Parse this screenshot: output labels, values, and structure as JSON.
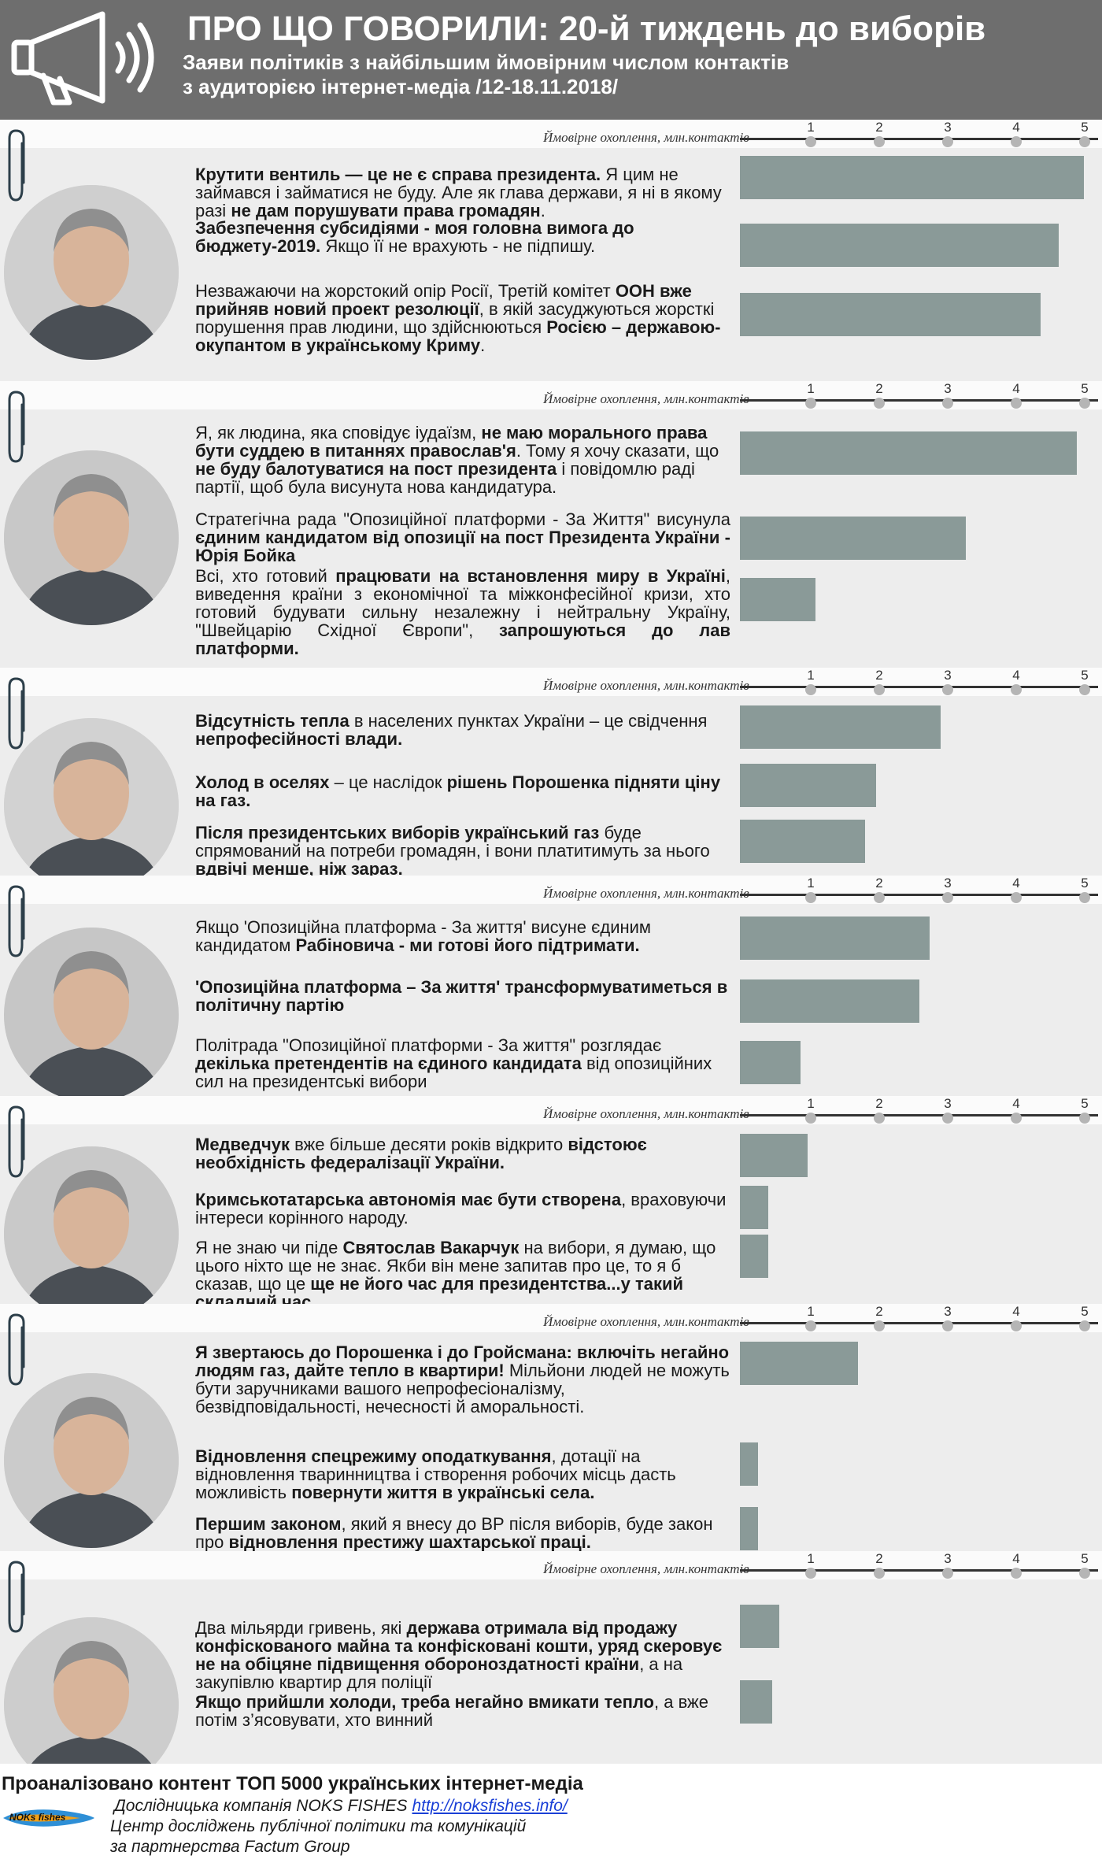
{
  "header": {
    "title": "ПРО ЩО ГОВОРИЛИ: 20-й тиждень до виборів",
    "subtitle_line1": "Заяви політиків з найбільшим ймовірним числом контактів",
    "subtitle_line2": "з аудиторією інтернет-медіа /12-18.11.2018/",
    "icon": "megaphone-icon"
  },
  "axis": {
    "label": "Ймовірне охоплення, млн.контактів",
    "ticks": [
      "1",
      "2",
      "3",
      "4",
      "5"
    ],
    "range": [
      0,
      5
    ]
  },
  "colors": {
    "header_bg": "#6e6e6e",
    "panel_bg": "#ededed",
    "bar": "#8a9a98",
    "link": "#1a3fd6"
  },
  "chart_data": {
    "type": "bar",
    "orientation": "horizontal",
    "xlabel": "Ймовірне охоплення, млн.контактів",
    "xlim": [
      0,
      5
    ],
    "ticks": [
      1,
      2,
      3,
      4,
      5
    ],
    "grid": false,
    "categories": [
      "Крутити вентиль — це не є справа президента",
      "Забезпечення субсидіями - моя головна вимога",
      "ООН вже прийняв новий проект резолюції",
      "не маю морального права бути суддею",
      "єдиним кандидатом від опозиції - Юрія Бойка",
      "працювати на встановлення миру в Україні",
      "Відсутність тепла",
      "Холод в оселях",
      "Після президентських виборів український газ",
      "висуне єдиним кандидатом Рабіновича",
      "трансформуватиметься в політичну партію",
      "декілька претендентів на єдиного кандидата",
      "Медведчук відстоює необхідність федералізації",
      "Кримськотатарська автономія",
      "Святослав Вакарчук",
      "Я звертаюсь до Порошенка і до Гройсмана",
      "Відновлення спецрежиму оподаткування",
      "Першим законом",
      "Два мільярди гривень",
      "Якщо прийшли холоди, треба негайно вмикати тепло"
    ],
    "values": [
      4.8,
      4.45,
      4.2,
      4.7,
      3.15,
      1.05,
      2.8,
      1.9,
      1.75,
      2.65,
      2.5,
      0.85,
      0.95,
      0.4,
      0.4,
      1.65,
      0.25,
      0.25,
      0.55,
      0.45
    ]
  },
  "politicians": [
    {
      "statements": [
        {
          "parts": [
            {
              "t": "Крутити вентиль — це не є справа президента.",
              "b": true
            },
            {
              "t": " Я цим не займався і займатися не буду. Але як глава держави, я ні в якому разі ",
              "b": false
            },
            {
              "t": "не дам порушувати права громадян",
              "b": true
            },
            {
              "t": ".",
              "b": false
            }
          ]
        },
        {
          "parts": [
            {
              "t": "Забезпечення субсидіями - моя головна вимога до бюджету-2019.",
              "b": true
            },
            {
              "t": " Якщо її не врахують - не підпишу.",
              "b": false
            }
          ]
        },
        {
          "parts": [
            {
              "t": "Незважаючи на жорстокий опір Росії, Третій комітет ",
              "b": false
            },
            {
              "t": "ООН вже прийняв новий проект резолюції",
              "b": true
            },
            {
              "t": ", в якій засуджуються жорсткі порушення прав людини, що здійснюються ",
              "b": false
            },
            {
              "t": "Росією – державою-окупантом в українському Криму",
              "b": true
            },
            {
              "t": ".",
              "b": false
            }
          ]
        }
      ]
    },
    {
      "statements": [
        {
          "parts": [
            {
              "t": "Я, як людина, яка сповідує іудаїзм, ",
              "b": false
            },
            {
              "t": "не маю морального права бути суддею в питаннях православ'я",
              "b": true
            },
            {
              "t": ". Тому я хочу сказати, що ",
              "b": false
            },
            {
              "t": "не буду балотуватися на пост президента",
              "b": true
            },
            {
              "t": " і повідомлю раді партії, щоб була висунута нова кандидатура.",
              "b": false
            }
          ]
        },
        {
          "parts": [
            {
              "t": "Стратегічна рада \"Опозиційної платформи - За Життя\" висунула ",
              "b": false
            },
            {
              "t": "єдиним кандидатом від опозиції на пост Президента України - Юрія Бойка",
              "b": true
            }
          ]
        },
        {
          "parts": [
            {
              "t": "Всі, хто готовий ",
              "b": false
            },
            {
              "t": "працювати на встановлення миру в Україні",
              "b": true
            },
            {
              "t": ", виведення країни з економічної та міжконфесійної кризи, хто готовий будувати сильну незалежну і нейтральну Україну, \"Швейцарію Східної Європи\", ",
              "b": false
            },
            {
              "t": "запрошуються до лав платформи.",
              "b": true
            }
          ]
        }
      ]
    },
    {
      "statements": [
        {
          "parts": [
            {
              "t": "Відсутність тепла",
              "b": true
            },
            {
              "t": " в населених пунктах України – це свідчення ",
              "b": false
            },
            {
              "t": "непрофесійності влади.",
              "b": true
            }
          ]
        },
        {
          "parts": [
            {
              "t": "Холод в оселях",
              "b": true
            },
            {
              "t": " – це наслідок ",
              "b": false
            },
            {
              "t": "рішень Порошенка підняти ціну на газ.",
              "b": true
            }
          ]
        },
        {
          "parts": [
            {
              "t": "Після президентських виборів український газ",
              "b": true
            },
            {
              "t": " буде спрямований на потреби громадян, і вони платитимуть за нього ",
              "b": false
            },
            {
              "t": "вдвічі менше, ніж зараз.",
              "b": true
            }
          ]
        }
      ]
    },
    {
      "statements": [
        {
          "parts": [
            {
              "t": "Якщо 'Опозиційна платформа - За життя' висуне єдиним кандидатом ",
              "b": false
            },
            {
              "t": "Рабіновича - ми готові його підтримати.",
              "b": true
            }
          ]
        },
        {
          "parts": [
            {
              "t": "'Опозиційна платформа – За життя' трансформуватиметься в політичну партію",
              "b": true
            }
          ]
        },
        {
          "parts": [
            {
              "t": "Політрада \"Опозиційної платформи - За життя\" розглядає ",
              "b": false
            },
            {
              "t": "декілька претендентів на єдиного кандидата",
              "b": true
            },
            {
              "t": " від опозиційних сил на президентські вибори",
              "b": false
            }
          ]
        }
      ]
    },
    {
      "statements": [
        {
          "parts": [
            {
              "t": "Медведчук",
              "b": true
            },
            {
              "t": " вже більше десяти років відкрито ",
              "b": false
            },
            {
              "t": "відстоює необхідність федералізації України.",
              "b": true
            }
          ]
        },
        {
          "parts": [
            {
              "t": "Кримськотатарська автономія має бути створена",
              "b": true
            },
            {
              "t": ", враховуючи інтереси корінного народу.",
              "b": false
            }
          ]
        },
        {
          "parts": [
            {
              "t": "Я не знаю чи піде ",
              "b": false
            },
            {
              "t": "Святослав Вакарчук",
              "b": true
            },
            {
              "t": " на вибори, я думаю, що цього ніхто ще не знає. Якби він мене запитав про це, то я б сказав, що це ",
              "b": false
            },
            {
              "t": "ще не його час для президентства...у такий складний час.",
              "b": true
            }
          ]
        }
      ]
    },
    {
      "statements": [
        {
          "parts": [
            {
              "t": "Я звертаюсь до Порошенка і до Гройсмана: включіть негайно людям газ, дайте тепло в квартири!",
              "b": true
            },
            {
              "t": " Мільйони людей не можуть бути заручниками вашого непрофесіоналізму, безвідповідальності, нечесності й аморальності.",
              "b": false
            }
          ]
        },
        {
          "parts": [
            {
              "t": "Відновлення спецрежиму оподаткування",
              "b": true
            },
            {
              "t": ", дотації на відновлення тваринництва і створення робочих місць дасть можливість ",
              "b": false
            },
            {
              "t": "повернути життя в українські села.",
              "b": true
            }
          ]
        },
        {
          "parts": [
            {
              "t": "Першим законом",
              "b": true
            },
            {
              "t": ", який я внесу до ВР після виборів, буде закон про ",
              "b": false
            },
            {
              "t": "відновлення престижу шахтарської праці.",
              "b": true
            }
          ]
        }
      ]
    },
    {
      "statements": [
        {
          "parts": [
            {
              "t": "Два мільярди гривень, які ",
              "b": false
            },
            {
              "t": "держава отримала від продажу конфіскованого майна та конфісковані кошти, уряд скеровує не на обіцяне підвищення обороноздатності країни",
              "b": true
            },
            {
              "t": ", а на закупівлю квартир для поліції",
              "b": false
            }
          ]
        },
        {
          "parts": [
            {
              "t": "Якщо прийшли холоди, треба негайно вмикати тепло",
              "b": true
            },
            {
              "t": ", а вже потім з’ясовувати, хто винний",
              "b": false
            }
          ]
        }
      ]
    }
  ],
  "footer": {
    "analyzed": "Проаналізовано контент ТОП 5000 українських інтернет-медіа",
    "company": "Дослідницька компанія NOKS FISHES",
    "link": "http://noksfishes.info/",
    "center": "Центр досліджень публічної політики та комунікацій",
    "partner": "за партнерства Factum Group",
    "logo_text": "NOKs fishes"
  }
}
